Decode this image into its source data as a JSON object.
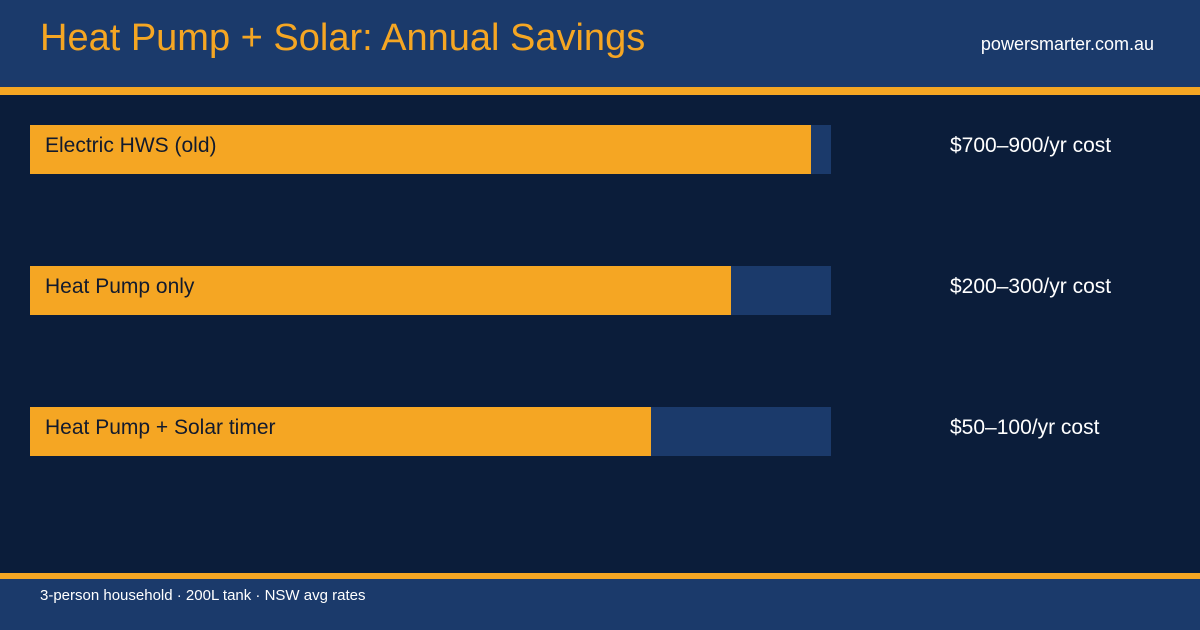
{
  "header": {
    "title": "Heat Pump + Solar: Annual Savings",
    "site": "powersmarter.com.au"
  },
  "chart_data": {
    "type": "bar",
    "orientation": "horizontal",
    "categories": [
      "Electric HWS (old)",
      "Heat Pump only",
      "Heat Pump + Solar timer"
    ],
    "value_labels": [
      "$700–900/yr cost",
      "$200–300/yr cost",
      "$50–100/yr cost"
    ],
    "fill_fractions": [
      0.975,
      0.875,
      0.775
    ],
    "grid": false,
    "legend": "none"
  },
  "footer": {
    "note": "3-person household · 200L tank · NSW avg rates"
  },
  "colors": {
    "accent": "#f5a623",
    "header_bg": "#1b3a6b",
    "page_bg": "#0b1d3a",
    "track": "#1b3a6b"
  }
}
